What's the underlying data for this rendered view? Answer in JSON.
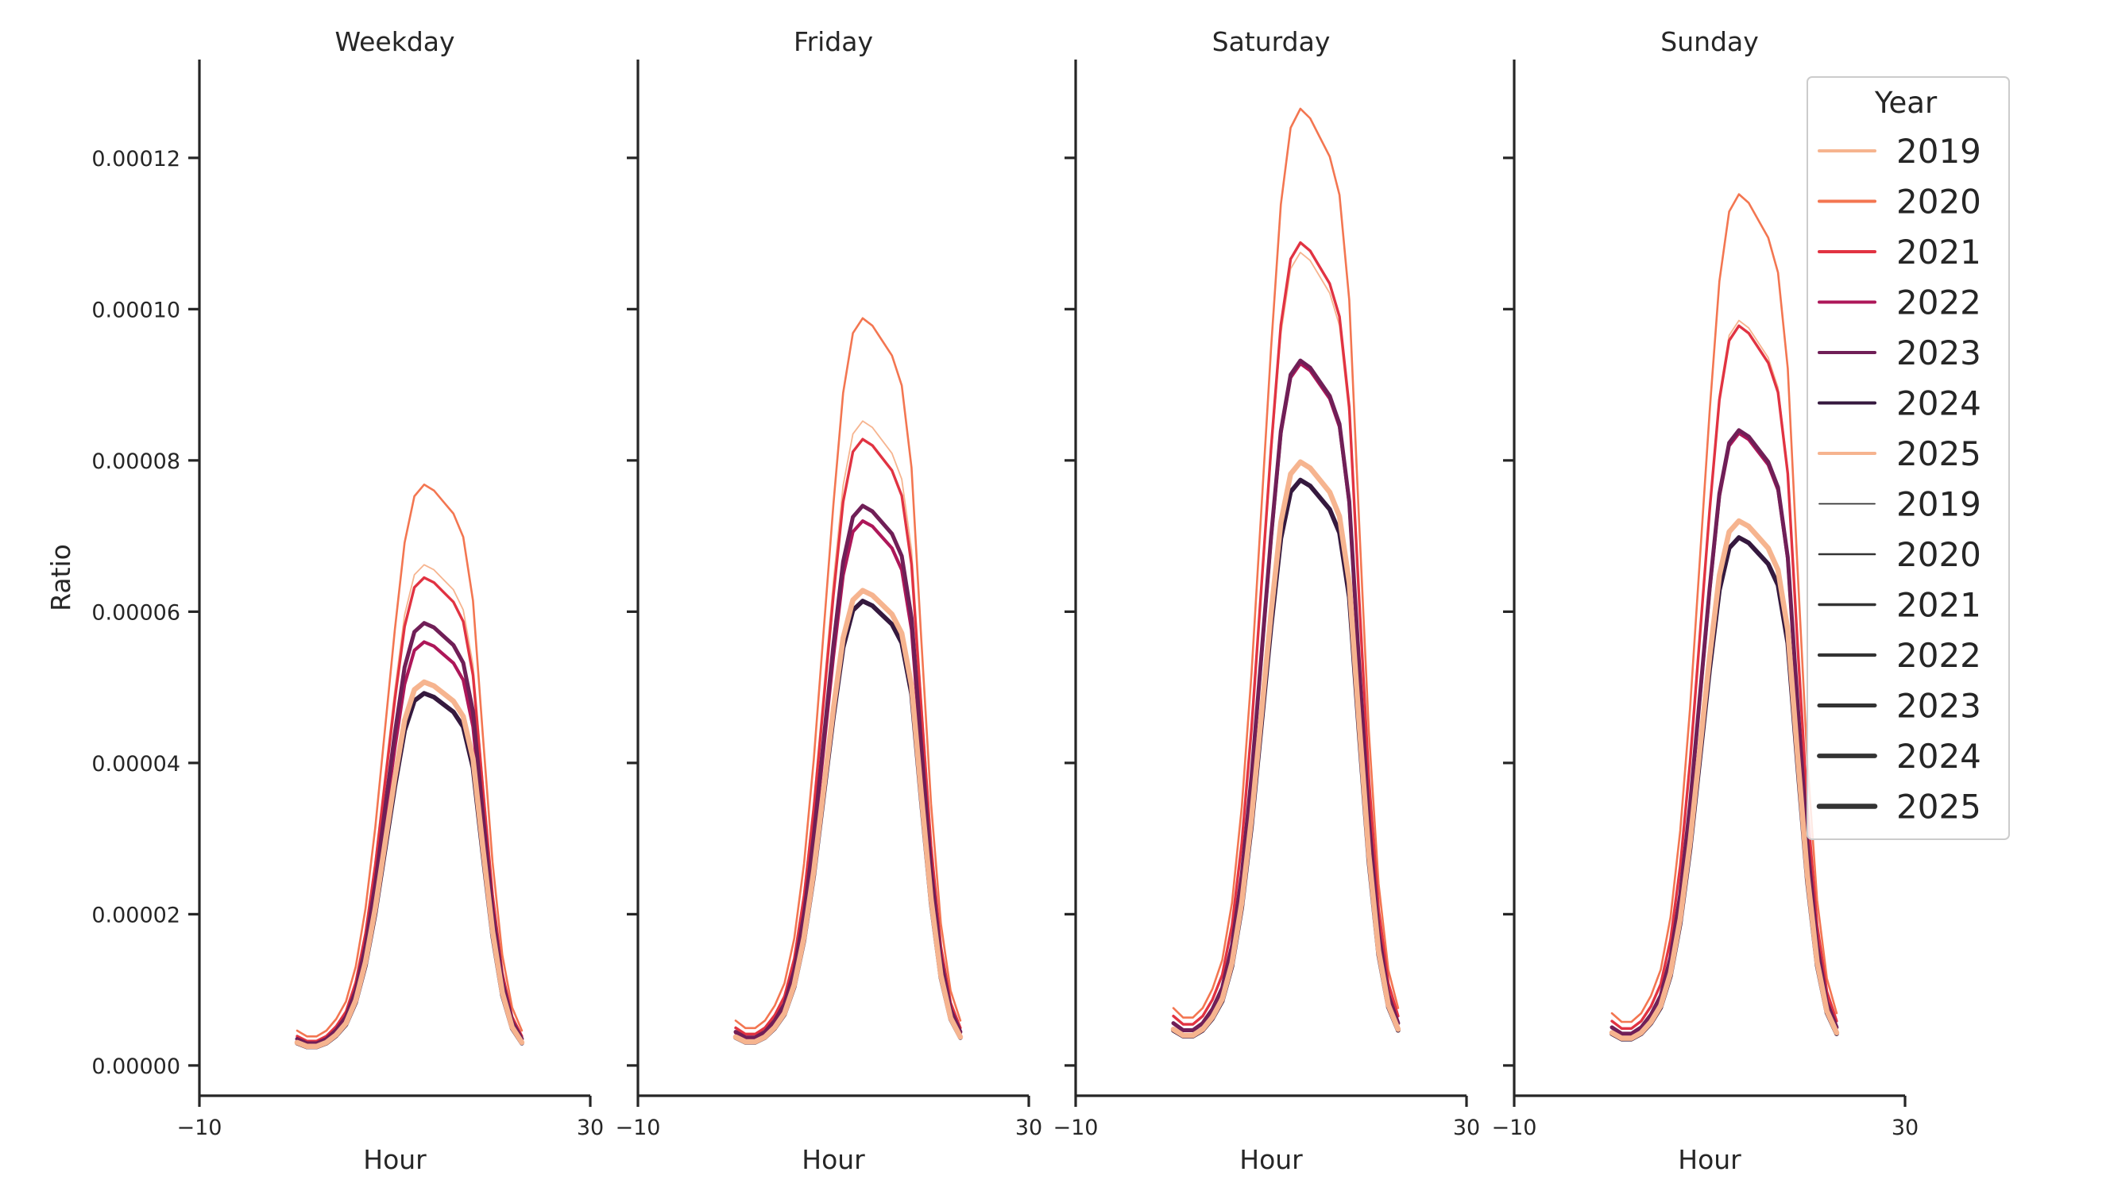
{
  "chart_data": {
    "type": "line",
    "panels": [
      "Weekday",
      "Friday",
      "Saturday",
      "Sunday"
    ],
    "xlabel": "Hour",
    "ylabel": "Ratio",
    "xlim": [
      -10,
      30
    ],
    "ylim": [
      -4e-06,
      0.000133
    ],
    "xticks": [
      -10,
      30
    ],
    "xtick_labels": [
      "−10",
      "30"
    ],
    "yticks": [
      0.0,
      2e-05,
      4e-05,
      6e-05,
      8e-05,
      0.0001,
      0.00012
    ],
    "ytick_labels": [
      "0.00000",
      "0.00002",
      "0.00004",
      "0.00006",
      "0.00008",
      "0.00010",
      "0.00012"
    ],
    "x": [
      0,
      1,
      2,
      3,
      4,
      5,
      6,
      7,
      8,
      9,
      10,
      11,
      12,
      13,
      14,
      15,
      16,
      17,
      18,
      19,
      20,
      21,
      22,
      23
    ],
    "hue_colors": {
      "2019": "#f6b48f",
      "2020": "#f37651",
      "2021": "#e13342",
      "2022": "#ad1759",
      "2023": "#701f57",
      "2024": "#35193e",
      "2025": "#f6b48f"
    },
    "size_widths": {
      "2019": 1.8,
      "2020": 2.6,
      "2021": 3.4,
      "2022": 4.2,
      "2023": 5.0,
      "2024": 5.8,
      "2025": 6.6
    },
    "legend": {
      "title": "Year",
      "placement": "top-right",
      "hue_entries": [
        "2019",
        "2020",
        "2021",
        "2022",
        "2023",
        "2024",
        "2025"
      ],
      "size_entries": [
        "2019",
        "2020",
        "2021",
        "2022",
        "2023",
        "2024",
        "2025"
      ],
      "size_color": "#333333"
    },
    "series": [
      {
        "panel": 0,
        "year": "2019",
        "peak": 6.62e-05
      },
      {
        "panel": 0,
        "year": "2020",
        "peak": 7.68e-05
      },
      {
        "panel": 0,
        "year": "2021",
        "peak": 6.45e-05
      },
      {
        "panel": 0,
        "year": "2022",
        "peak": 5.6e-05
      },
      {
        "panel": 0,
        "year": "2023",
        "peak": 5.85e-05
      },
      {
        "panel": 0,
        "year": "2024",
        "peak": 4.92e-05
      },
      {
        "panel": 0,
        "year": "2025",
        "peak": 5.07e-05
      },
      {
        "panel": 1,
        "year": "2019",
        "peak": 8.52e-05
      },
      {
        "panel": 1,
        "year": "2020",
        "peak": 9.88e-05
      },
      {
        "panel": 1,
        "year": "2021",
        "peak": 8.28e-05
      },
      {
        "panel": 1,
        "year": "2022",
        "peak": 7.2e-05
      },
      {
        "panel": 1,
        "year": "2023",
        "peak": 7.4e-05
      },
      {
        "panel": 1,
        "year": "2024",
        "peak": 6.14e-05
      },
      {
        "panel": 1,
        "year": "2025",
        "peak": 6.28e-05
      },
      {
        "panel": 2,
        "year": "2019",
        "peak": 0.0001075
      },
      {
        "panel": 2,
        "year": "2020",
        "peak": 0.0001265
      },
      {
        "panel": 2,
        "year": "2021",
        "peak": 0.0001088
      },
      {
        "panel": 2,
        "year": "2022",
        "peak": 9.28e-05
      },
      {
        "panel": 2,
        "year": "2023",
        "peak": 9.32e-05
      },
      {
        "panel": 2,
        "year": "2024",
        "peak": 7.74e-05
      },
      {
        "panel": 2,
        "year": "2025",
        "peak": 7.98e-05
      },
      {
        "panel": 3,
        "year": "2019",
        "peak": 9.85e-05
      },
      {
        "panel": 3,
        "year": "2020",
        "peak": 0.0001152
      },
      {
        "panel": 3,
        "year": "2021",
        "peak": 9.78e-05
      },
      {
        "panel": 3,
        "year": "2022",
        "peak": 8.36e-05
      },
      {
        "panel": 3,
        "year": "2023",
        "peak": 8.4e-05
      },
      {
        "panel": 3,
        "year": "2024",
        "peak": 6.98e-05
      },
      {
        "panel": 3,
        "year": "2025",
        "peak": 7.2e-05
      }
    ],
    "profile": [
      0.06,
      0.05,
      0.05,
      0.06,
      0.08,
      0.11,
      0.17,
      0.27,
      0.41,
      0.58,
      0.75,
      0.9,
      0.98,
      1.0,
      0.99,
      0.97,
      0.95,
      0.91,
      0.8,
      0.57,
      0.35,
      0.19,
      0.1,
      0.06
    ]
  }
}
